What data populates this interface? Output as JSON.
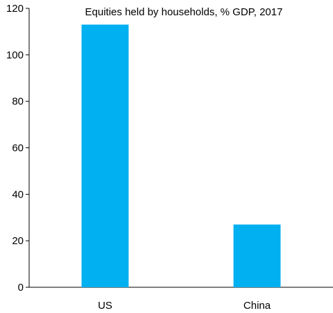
{
  "chart_data": {
    "type": "bar",
    "title": "Equities held by households, % GDP, 2017",
    "categories": [
      "US",
      "China"
    ],
    "values": [
      113,
      27
    ],
    "ylim": [
      0,
      120
    ],
    "yticks": [
      0,
      20,
      40,
      60,
      80,
      100,
      120
    ],
    "xlabel": "",
    "ylabel": "",
    "grid": false,
    "legend": "none",
    "bar_color": "#00B0F0"
  }
}
